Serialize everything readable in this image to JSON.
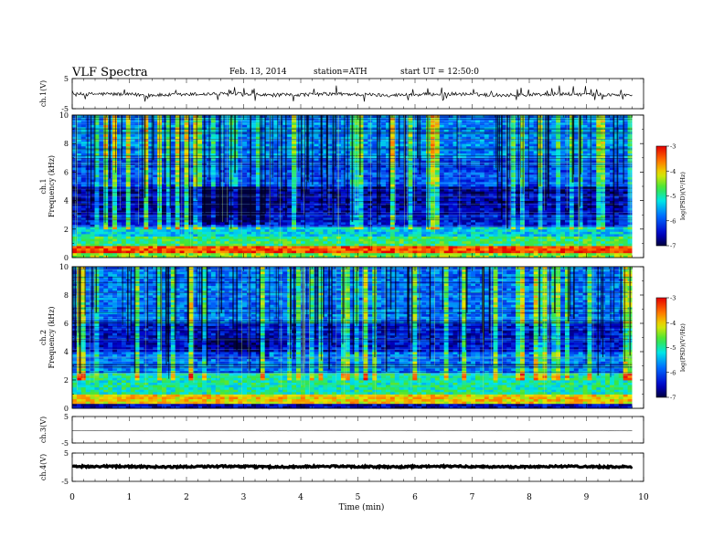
{
  "header": {
    "title": "VLF Spectra",
    "date": "Feb. 13, 2014",
    "station": "station=ATH",
    "start": "start UT =  12:50:0"
  },
  "chart_data": [
    {
      "type": "line",
      "panel": "ch1-waveform",
      "ylabel": "ch.1(V)",
      "ylim": [
        -5,
        5
      ],
      "yticks": [
        "5",
        "-5"
      ],
      "xlim": [
        0,
        10
      ],
      "description_values": {
        "baseline_mean": -0.3,
        "noise_amplitude": 0.6,
        "data_end_min": 9.8
      },
      "color": "#000000"
    },
    {
      "type": "heatmap",
      "panel": "ch1-spectrogram",
      "ylabel": "ch.1\nFrequency (kHz)",
      "ylabel_line1": "ch.1",
      "ylabel_line2": "Frequency (kHz)",
      "ylim": [
        0,
        10
      ],
      "yticks": [
        "0",
        "2",
        "4",
        "6",
        "8",
        "10"
      ],
      "xlim": [
        0,
        10
      ],
      "data_end_min": 9.8,
      "colorbar": {
        "label": "log(PSD(V^2/Hz)",
        "label_display": "log(PSD)(V²/Hz)",
        "range": [
          -7,
          -3
        ],
        "ticks": [
          "-3",
          "-4",
          "-5",
          "-6",
          "-7"
        ]
      },
      "bands_khz_logpsd": [
        {
          "f": [
            0.0,
            0.3
          ],
          "v": -4.5
        },
        {
          "f": [
            0.3,
            0.8
          ],
          "v": -3.4
        },
        {
          "f": [
            0.8,
            1.5
          ],
          "v": -4.8
        },
        {
          "f": [
            1.5,
            2.2
          ],
          "v": -5.3
        },
        {
          "f": [
            2.2,
            3.0
          ],
          "v": -6.3
        },
        {
          "f": [
            3.0,
            5.0
          ],
          "v": -6.6
        },
        {
          "f": [
            5.0,
            7.0
          ],
          "v": -6.0
        },
        {
          "f": [
            7.0,
            10.0
          ],
          "v": -5.7
        }
      ]
    },
    {
      "type": "heatmap",
      "panel": "ch2-spectrogram",
      "ylabel_line1": "ch.2",
      "ylabel_line2": "Frequency (kHz)",
      "ylim": [
        0,
        10
      ],
      "yticks": [
        "0",
        "2",
        "4",
        "6",
        "8",
        "10"
      ],
      "xlim": [
        0,
        10
      ],
      "data_end_min": 9.8,
      "colorbar": {
        "label_display": "log(PSD)(V²/Hz)",
        "range": [
          -7,
          -3
        ],
        "ticks": [
          "-3",
          "-4",
          "-5",
          "-6",
          "-7"
        ]
      },
      "bands_khz_logpsd": [
        {
          "f": [
            0.0,
            0.3
          ],
          "v": -6.5
        },
        {
          "f": [
            0.3,
            1.0
          ],
          "v": -4.0
        },
        {
          "f": [
            1.0,
            2.5
          ],
          "v": -5.0
        },
        {
          "f": [
            2.5,
            4.0
          ],
          "v": -5.8
        },
        {
          "f": [
            4.0,
            6.0
          ],
          "v": -6.4
        },
        {
          "f": [
            6.0,
            10.0
          ],
          "v": -5.8
        }
      ]
    },
    {
      "type": "line",
      "panel": "ch3-waveform",
      "ylabel": "ch.3(V)",
      "ylim": [
        -5,
        5
      ],
      "yticks": [
        "5",
        "-5"
      ],
      "xlim": [
        0,
        10
      ],
      "description_values": {
        "baseline_mean": -0.4,
        "noise_amplitude": 0.05,
        "data_end_min": 9.8
      },
      "color": "#000000"
    },
    {
      "type": "line",
      "panel": "ch4-waveform",
      "ylabel": "ch.4(V)",
      "ylim": [
        -5,
        5
      ],
      "yticks": [
        "5",
        "-5"
      ],
      "xlim": [
        0,
        10
      ],
      "description_values": {
        "baseline_mean": 0.2,
        "noise_amplitude": 0.3,
        "data_end_min": 9.8
      },
      "color": "#000000"
    }
  ],
  "xaxis": {
    "label": "Time (min)",
    "ticks": [
      "0",
      "1",
      "2",
      "3",
      "4",
      "5",
      "6",
      "7",
      "8",
      "9",
      "10"
    ]
  }
}
